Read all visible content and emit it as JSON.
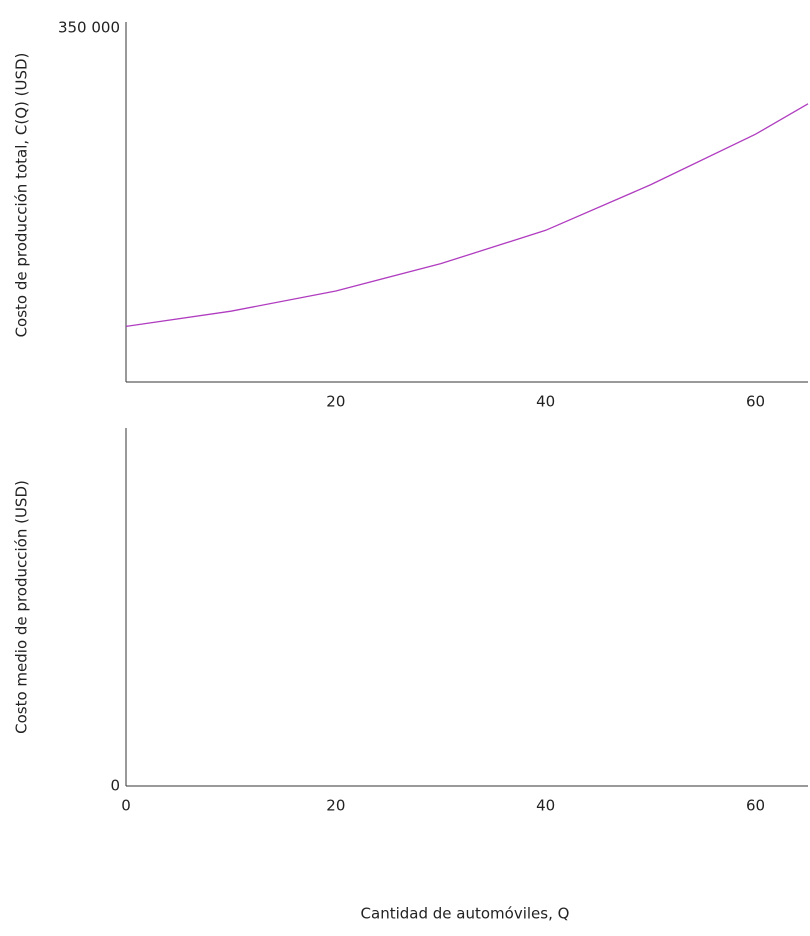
{
  "chart_data": [
    {
      "type": "line",
      "ylabel": "Costo de producción total, C(Q) (USD)",
      "x": [
        0,
        10,
        20,
        30,
        40,
        50,
        60,
        65
      ],
      "values": [
        55000,
        70000,
        90000,
        117000,
        150000,
        195000,
        245000,
        275000
      ],
      "color": "#b03cc0",
      "xlim": [
        0,
        65
      ],
      "xticks": [
        20,
        40,
        60
      ],
      "ylim": [
        0,
        350000
      ],
      "yticks": [
        {
          "value": 350000,
          "label": "350 000"
        }
      ]
    },
    {
      "type": "empty",
      "ylabel": "Costo medio de producción (USD)",
      "xlabel": "Cantidad de automóviles, Q",
      "xlim": [
        0,
        65
      ],
      "xticks": [
        0,
        20,
        40,
        60
      ],
      "yticks": [
        0
      ]
    }
  ]
}
